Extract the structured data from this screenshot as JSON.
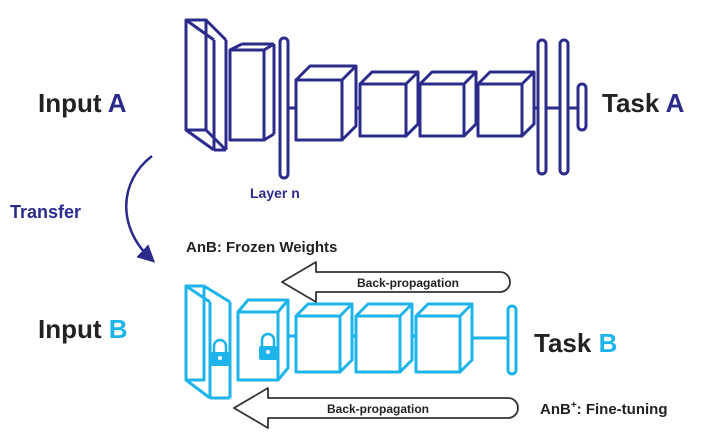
{
  "colors": {
    "network_a": "#2b2b8c",
    "network_b": "#1cb4ea",
    "text_dark": "#222222",
    "arrow_outline": "#333333"
  },
  "network_a": {
    "input_label": "Input",
    "input_letter": "A",
    "task_label": "Task",
    "task_letter": "A",
    "layer_label": "Layer n"
  },
  "transfer_label": "Transfer",
  "network_b": {
    "input_label": "Input",
    "input_letter": "B",
    "task_label": "Task",
    "task_letter": "B",
    "frozen_label": "AnB: Frozen Weights",
    "finetune_prefix": "AnB",
    "finetune_sup": "+",
    "finetune_suffix": ": Fine-tuning",
    "lock_icons": [
      "lock-icon",
      "lock-icon"
    ]
  },
  "backprop_top_label": "Back-propagation",
  "backprop_bottom_label": "Back-propagation"
}
